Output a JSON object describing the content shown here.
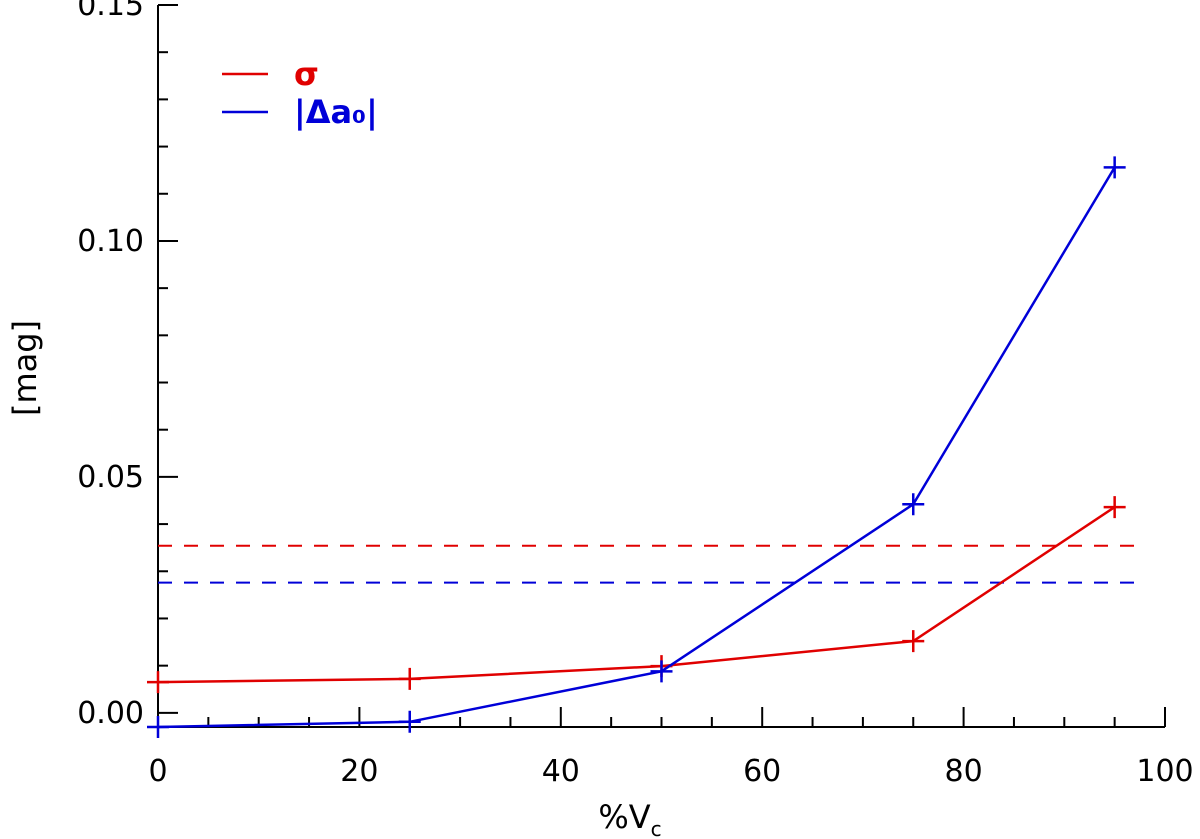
{
  "chart_data": {
    "type": "line",
    "xlabel": "%V",
    "xlabel_sub": "c",
    "ylabel": "[mag]",
    "xlim": [
      0,
      100
    ],
    "ylim": [
      -0.003,
      0.15
    ],
    "x_ticks": [
      0,
      20,
      40,
      60,
      80,
      100
    ],
    "x_tick_labels": [
      "0",
      "20",
      "40",
      "60",
      "80",
      "100"
    ],
    "y_ticks": [
      0.0,
      0.05,
      0.1,
      0.15
    ],
    "y_tick_labels": [
      "0.00",
      "0.05",
      "0.10",
      "0.15"
    ],
    "grid": false,
    "legend_position": "top-left",
    "series": [
      {
        "name": "σ",
        "color": "#e00000",
        "x": [
          0,
          25,
          50,
          75,
          95
        ],
        "values": [
          0.0065,
          0.0072,
          0.0099,
          0.0152,
          0.0436
        ],
        "reference_line": 0.0354
      },
      {
        "name": "|Δa₀|",
        "color": "#0000d8",
        "x": [
          0,
          25,
          50,
          75,
          95
        ],
        "values": [
          -0.003,
          -0.0019,
          0.0088,
          0.0442,
          0.1156
        ],
        "reference_line": 0.0276
      }
    ]
  }
}
